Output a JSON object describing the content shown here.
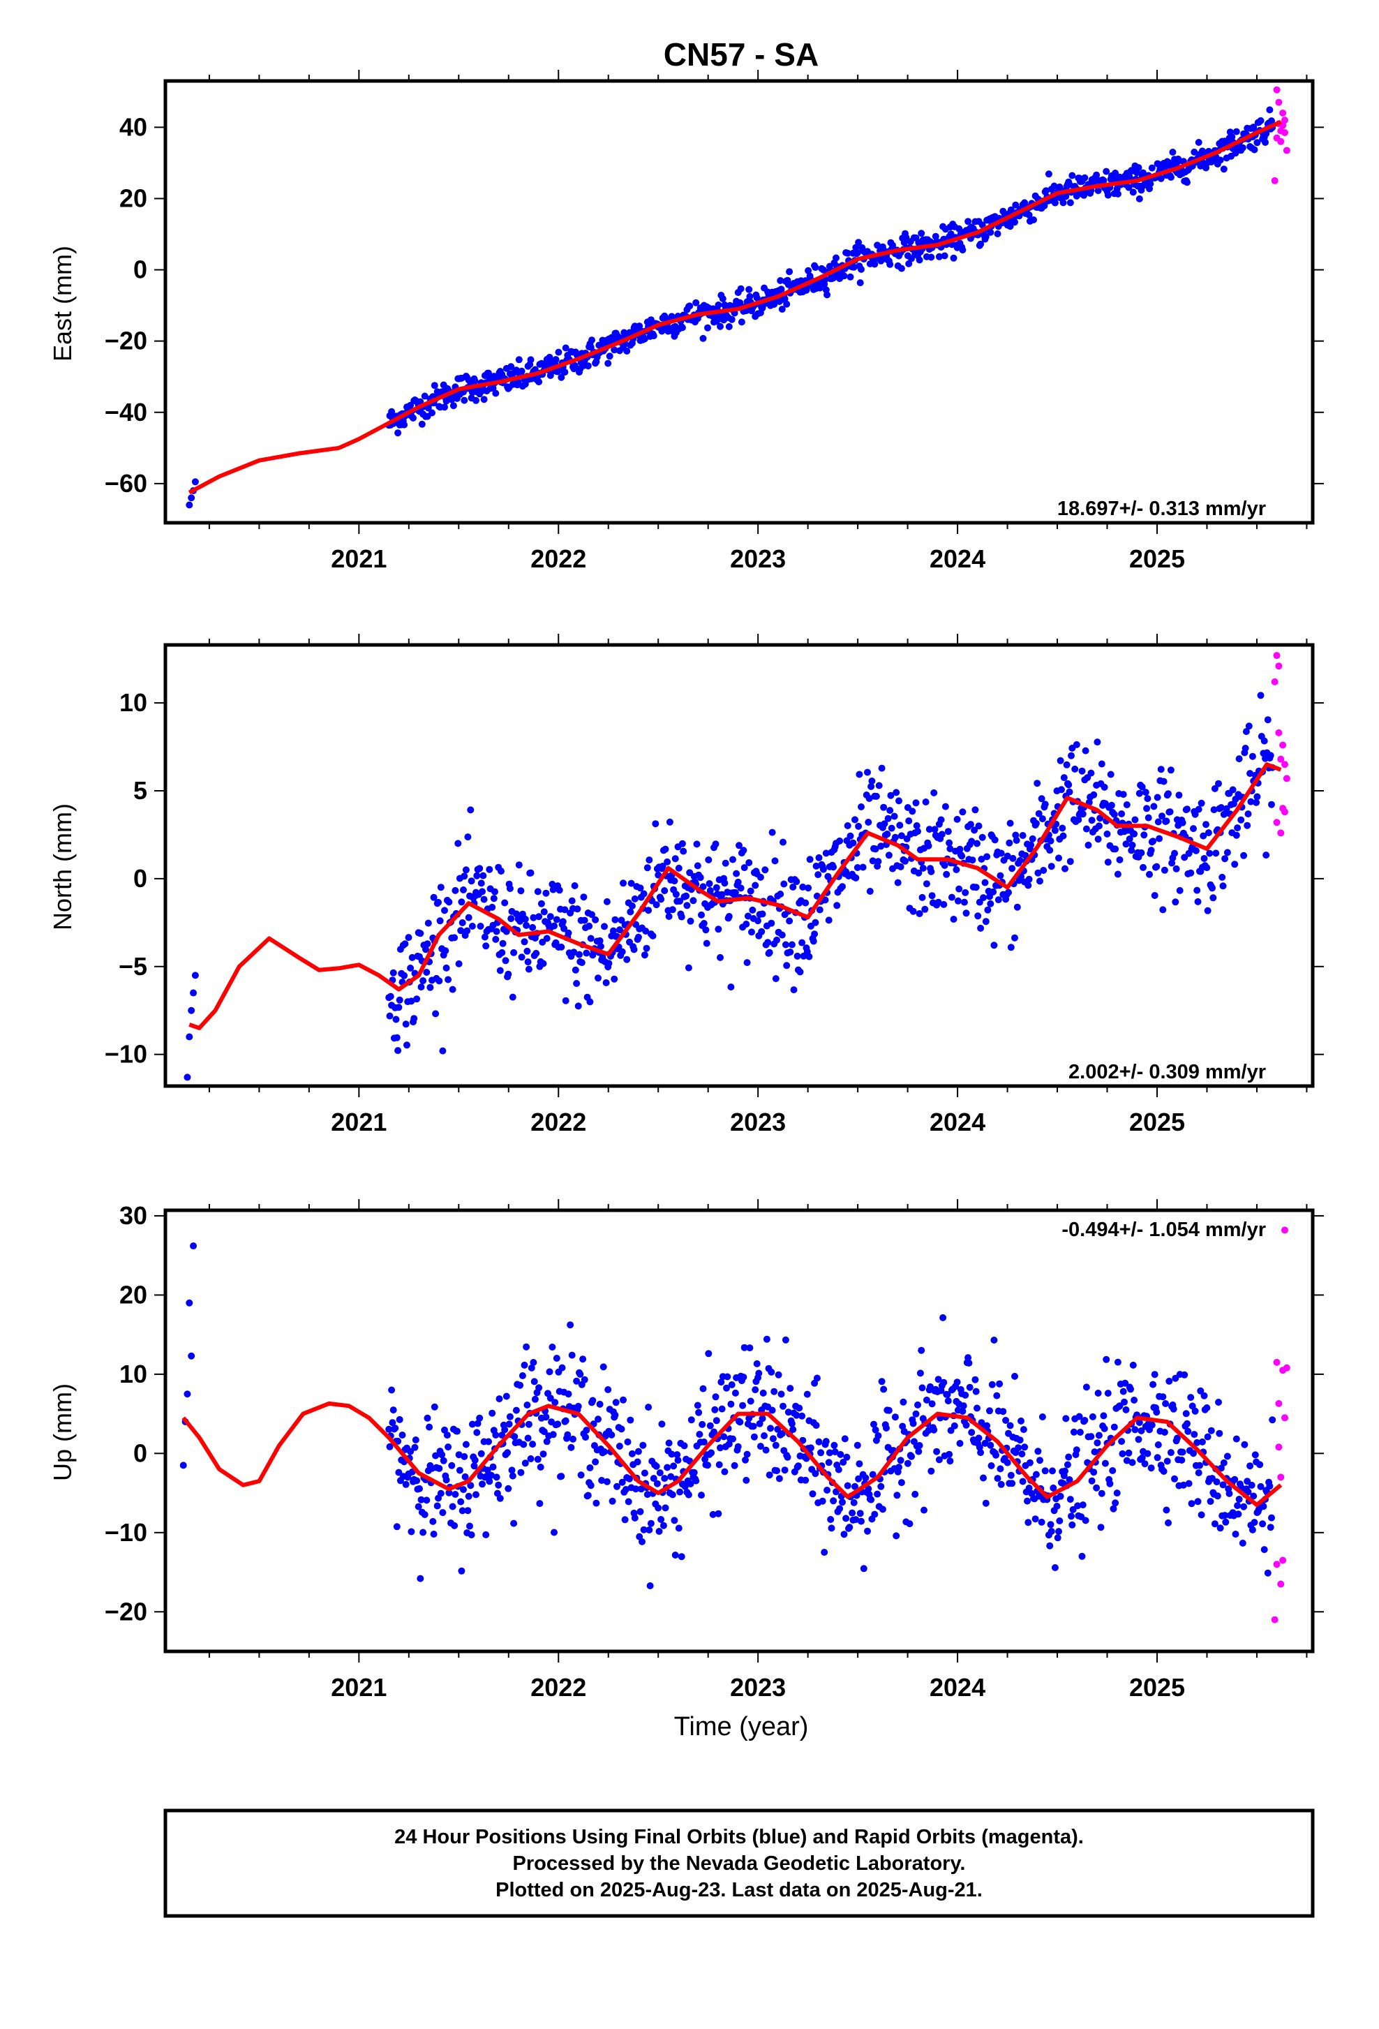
{
  "title": "CN57 - SA",
  "xlabel": "Time (year)",
  "footer": {
    "line1": "24 Hour Positions Using Final Orbits (blue) and Rapid Orbits (magenta).",
    "line2": "Processed by the Nevada Geodetic Laboratory.",
    "line3": "Plotted on 2025-Aug-23. Last data on 2025-Aug-21."
  },
  "colors": {
    "final_orbits": "#0000ff",
    "rapid_orbits": "#ff00ff",
    "model": "#ff0000",
    "frame": "#000000"
  },
  "chart_data": [
    {
      "type": "scatter",
      "component": "east",
      "ylabel": "East (mm)",
      "rate_label": "18.697+/- 0.313 mm/yr",
      "xlim": [
        2020.03,
        2025.78
      ],
      "ylim": [
        -71,
        53
      ],
      "x_ticks": [
        2021,
        2022,
        2023,
        2024,
        2025
      ],
      "y_ticks": [
        -60,
        -40,
        -20,
        0,
        20,
        40
      ],
      "grid": false,
      "model_curve": {
        "name": "model",
        "x": [
          2020.15,
          2020.3,
          2020.5,
          2020.7,
          2020.9,
          2021.0,
          2021.15,
          2021.3,
          2021.5,
          2021.7,
          2021.9,
          2022.1,
          2022.3,
          2022.5,
          2022.7,
          2022.9,
          2023.1,
          2023.3,
          2023.5,
          2023.7,
          2023.9,
          2024.1,
          2024.3,
          2024.5,
          2024.7,
          2024.9,
          2025.1,
          2025.3,
          2025.5,
          2025.62
        ],
        "y": [
          -62.5,
          -58,
          -53.5,
          -51.5,
          -50,
          -47.5,
          -43,
          -38.5,
          -33.5,
          -31.5,
          -29,
          -25,
          -20.5,
          -15.5,
          -12.5,
          -11,
          -7.5,
          -2.5,
          3,
          5.5,
          7,
          10.5,
          16,
          21.5,
          23.5,
          25,
          28.5,
          33,
          38.5,
          41.5
        ]
      },
      "final_orbits": {
        "series_note": "dense daily positions 2021.15-2025.58 along model, scatter about +/-2 mm; early points 2020.15-2020.18",
        "early_points": {
          "x": [
            2020.15,
            2020.16,
            2020.17,
            2020.18
          ],
          "y": [
            -66,
            -64,
            -62,
            -59.5
          ]
        },
        "scatter_mm": 2.0
      },
      "rapid_orbits": {
        "x": [
          2025.59,
          2025.6,
          2025.6,
          2025.61,
          2025.61,
          2025.62,
          2025.62,
          2025.63,
          2025.63,
          2025.64,
          2025.64,
          2025.65
        ],
        "y": [
          25,
          50.5,
          37,
          41,
          47,
          39,
          36,
          44,
          40.5,
          38.5,
          42,
          33.5
        ]
      }
    },
    {
      "type": "scatter",
      "component": "north",
      "ylabel": "North (mm)",
      "rate_label": "2.002+/- 0.309 mm/yr",
      "xlim": [
        2020.03,
        2025.78
      ],
      "ylim": [
        -11.8,
        13.3
      ],
      "x_ticks": [
        2021,
        2022,
        2023,
        2024,
        2025
      ],
      "y_ticks": [
        -10,
        -5,
        0,
        5,
        10
      ],
      "grid": false,
      "model_curve": {
        "name": "model",
        "x": [
          2020.15,
          2020.2,
          2020.28,
          2020.4,
          2020.55,
          2020.7,
          2020.8,
          2020.9,
          2021.0,
          2021.1,
          2021.2,
          2021.3,
          2021.4,
          2021.55,
          2021.7,
          2021.8,
          2021.95,
          2022.1,
          2022.25,
          2022.4,
          2022.55,
          2022.7,
          2022.8,
          2022.95,
          2023.1,
          2023.25,
          2023.4,
          2023.55,
          2023.7,
          2023.8,
          2023.95,
          2024.1,
          2024.25,
          2024.4,
          2024.55,
          2024.7,
          2024.8,
          2024.95,
          2025.1,
          2025.25,
          2025.4,
          2025.55,
          2025.62
        ],
        "y": [
          -8.3,
          -8.5,
          -7.5,
          -5,
          -3.4,
          -4.5,
          -5.2,
          -5.1,
          -4.9,
          -5.5,
          -6.3,
          -5.5,
          -3.2,
          -1.4,
          -2.3,
          -3.2,
          -3,
          -3.7,
          -4.3,
          -2,
          0.6,
          -0.6,
          -1.3,
          -1.1,
          -1.5,
          -2.2,
          0.3,
          2.6,
          1.9,
          1.1,
          1.1,
          0.6,
          -0.5,
          1.8,
          4.6,
          3.9,
          3,
          3,
          2.4,
          1.7,
          3.9,
          6.5,
          6.2
        ]
      },
      "final_orbits": {
        "series_note": "daily positions scattered about model, +/-2 to 4 mm",
        "early_points": {
          "x": [
            2020.14,
            2020.15,
            2020.16,
            2020.17,
            2020.18
          ],
          "y": [
            -11.3,
            -9,
            -7.5,
            -6.5,
            -5.5
          ]
        },
        "scatter_mm": 1.7
      },
      "rapid_orbits": {
        "x": [
          2025.59,
          2025.6,
          2025.6,
          2025.61,
          2025.61,
          2025.62,
          2025.62,
          2025.63,
          2025.63,
          2025.64,
          2025.64,
          2025.65
        ],
        "y": [
          11.2,
          12.7,
          3.2,
          8.3,
          12.1,
          6.8,
          2.6,
          4,
          7.6,
          6.5,
          3.8,
          5.7
        ]
      }
    },
    {
      "type": "scatter",
      "component": "up",
      "ylabel": "Up (mm)",
      "rate_label": "-0.494+/- 1.054 mm/yr",
      "xlim": [
        2020.03,
        2025.78
      ],
      "ylim": [
        -25,
        30.7
      ],
      "x_ticks": [
        2021,
        2022,
        2023,
        2024,
        2025
      ],
      "y_ticks": [
        -20,
        -10,
        0,
        10,
        20,
        30
      ],
      "grid": false,
      "model_curve": {
        "name": "model",
        "x": [
          2020.12,
          2020.2,
          2020.3,
          2020.42,
          2020.5,
          2020.6,
          2020.72,
          2020.85,
          2020.95,
          2021.05,
          2021.15,
          2021.3,
          2021.45,
          2021.55,
          2021.7,
          2021.85,
          2021.95,
          2022.1,
          2022.25,
          2022.4,
          2022.5,
          2022.6,
          2022.75,
          2022.9,
          2023.05,
          2023.2,
          2023.35,
          2023.45,
          2023.6,
          2023.75,
          2023.9,
          2024.05,
          2024.2,
          2024.35,
          2024.45,
          2024.6,
          2024.75,
          2024.9,
          2025.05,
          2025.2,
          2025.35,
          2025.5,
          2025.62
        ],
        "y": [
          4.5,
          2,
          -2,
          -4,
          -3.5,
          1,
          5,
          6.3,
          6,
          4.5,
          2,
          -2.5,
          -4.5,
          -3.5,
          1,
          5,
          6,
          5,
          1,
          -3.5,
          -5,
          -3.5,
          1,
          5,
          5,
          1.5,
          -3,
          -5.5,
          -3,
          2,
          5,
          4.5,
          1.5,
          -3,
          -5.5,
          -3.5,
          1,
          4.5,
          4,
          0.5,
          -3.5,
          -6.5,
          -4
        ]
      },
      "final_orbits": {
        "series_note": "daily positions scattered about model, +/-5 to 10 mm",
        "early_points": {
          "x": [
            2020.12,
            2020.13,
            2020.14,
            2020.15,
            2020.16,
            2020.17
          ],
          "y": [
            -1.5,
            4,
            7.5,
            19,
            12.3,
            26.2
          ]
        },
        "scatter_mm": 4.2
      },
      "rapid_orbits": {
        "x": [
          2025.59,
          2025.6,
          2025.6,
          2025.61,
          2025.61,
          2025.62,
          2025.62,
          2025.63,
          2025.63,
          2025.64,
          2025.64,
          2025.65
        ],
        "y": [
          -21,
          11.5,
          -14,
          0.8,
          6.3,
          -16.5,
          -3,
          10.5,
          -13.5,
          28.2,
          4.5,
          10.8
        ]
      }
    }
  ]
}
